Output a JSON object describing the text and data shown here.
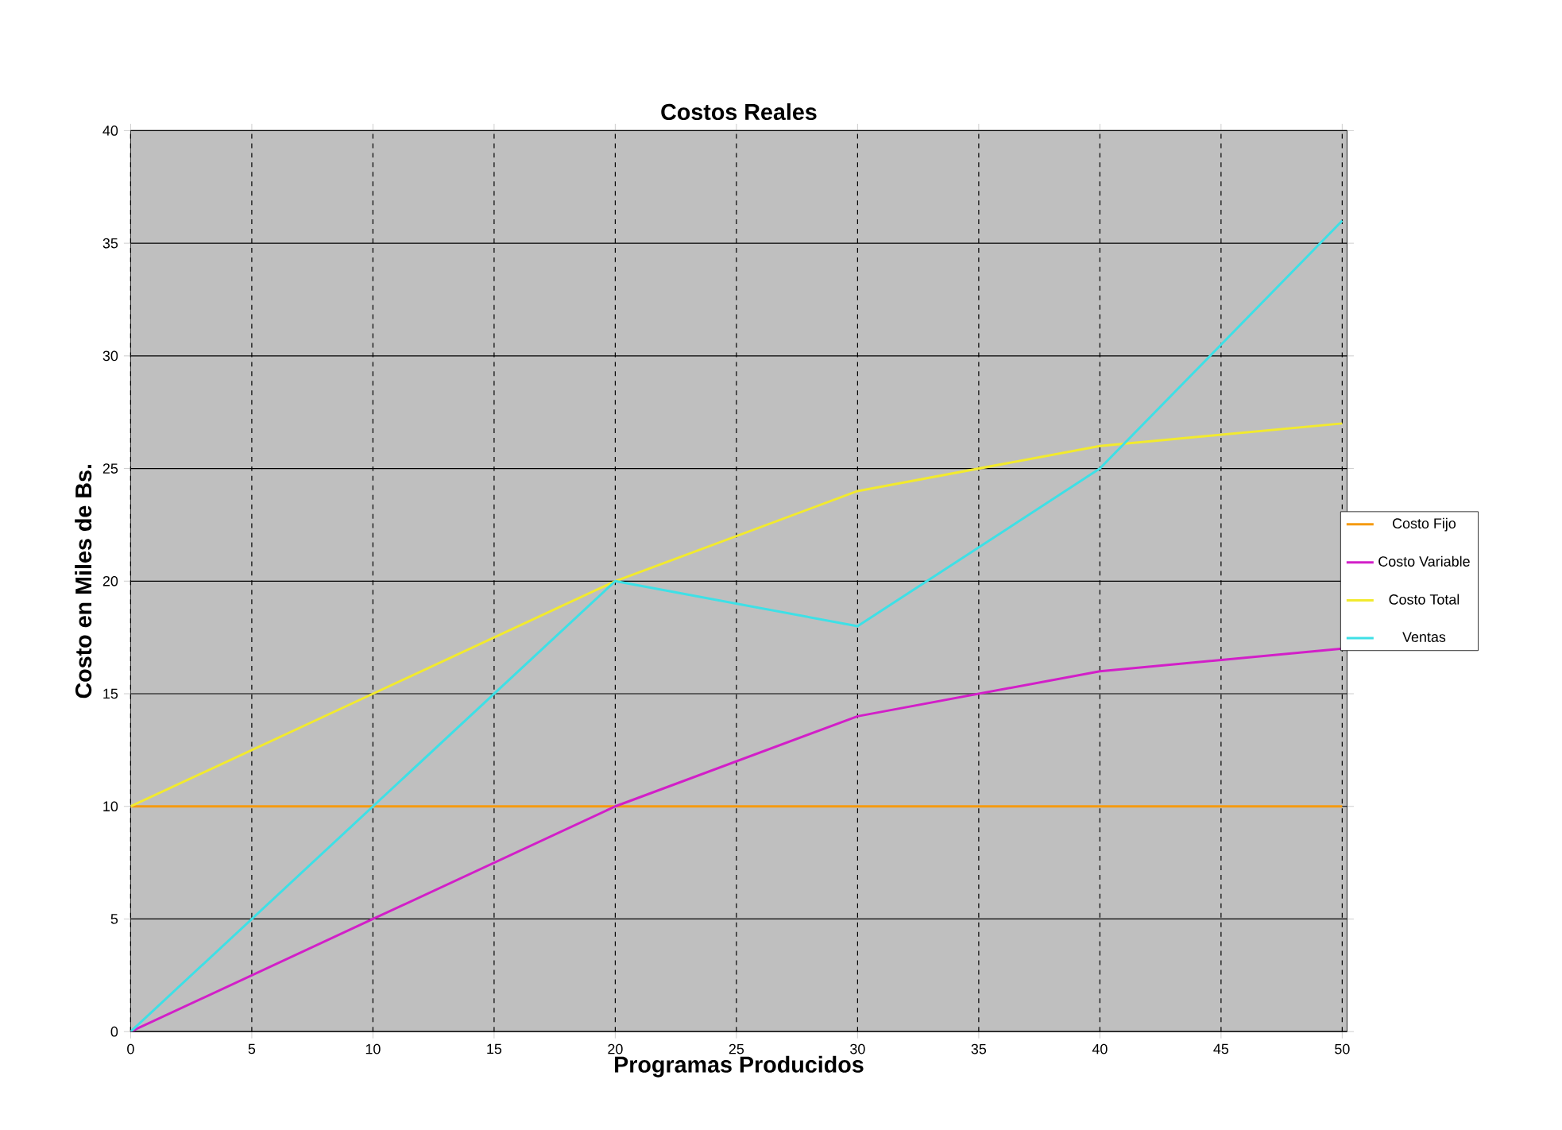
{
  "chart_data": {
    "type": "line",
    "title": "Costos Reales",
    "xlabel": "Programas Producidos",
    "ylabel": "Costo en Miles de Bs.",
    "x": [
      0,
      10,
      20,
      30,
      40,
      50
    ],
    "series": [
      {
        "name": "Costo Fijo",
        "color": "#f59a10",
        "values": [
          10,
          10,
          10,
          10,
          10,
          10
        ]
      },
      {
        "name": "Costo Variable",
        "color": "#d21fc8",
        "values": [
          0,
          5,
          10,
          14,
          16,
          17
        ]
      },
      {
        "name": "Costo Total",
        "color": "#f2ea2e",
        "values": [
          10,
          15,
          20,
          24,
          26,
          27
        ]
      },
      {
        "name": "Ventas",
        "color": "#3ee0e6",
        "values": [
          0,
          10,
          20,
          18,
          25,
          36
        ]
      }
    ],
    "xlim": [
      0,
      50.2
    ],
    "ylim": [
      0,
      40
    ],
    "xticks": [
      0,
      5,
      10,
      15,
      20,
      25,
      30,
      35,
      40,
      45,
      50
    ],
    "yticks": [
      0,
      5,
      10,
      15,
      20,
      25,
      30,
      35,
      40
    ],
    "grid": true,
    "legend": "right",
    "marker": "none",
    "line_style": "solid"
  }
}
